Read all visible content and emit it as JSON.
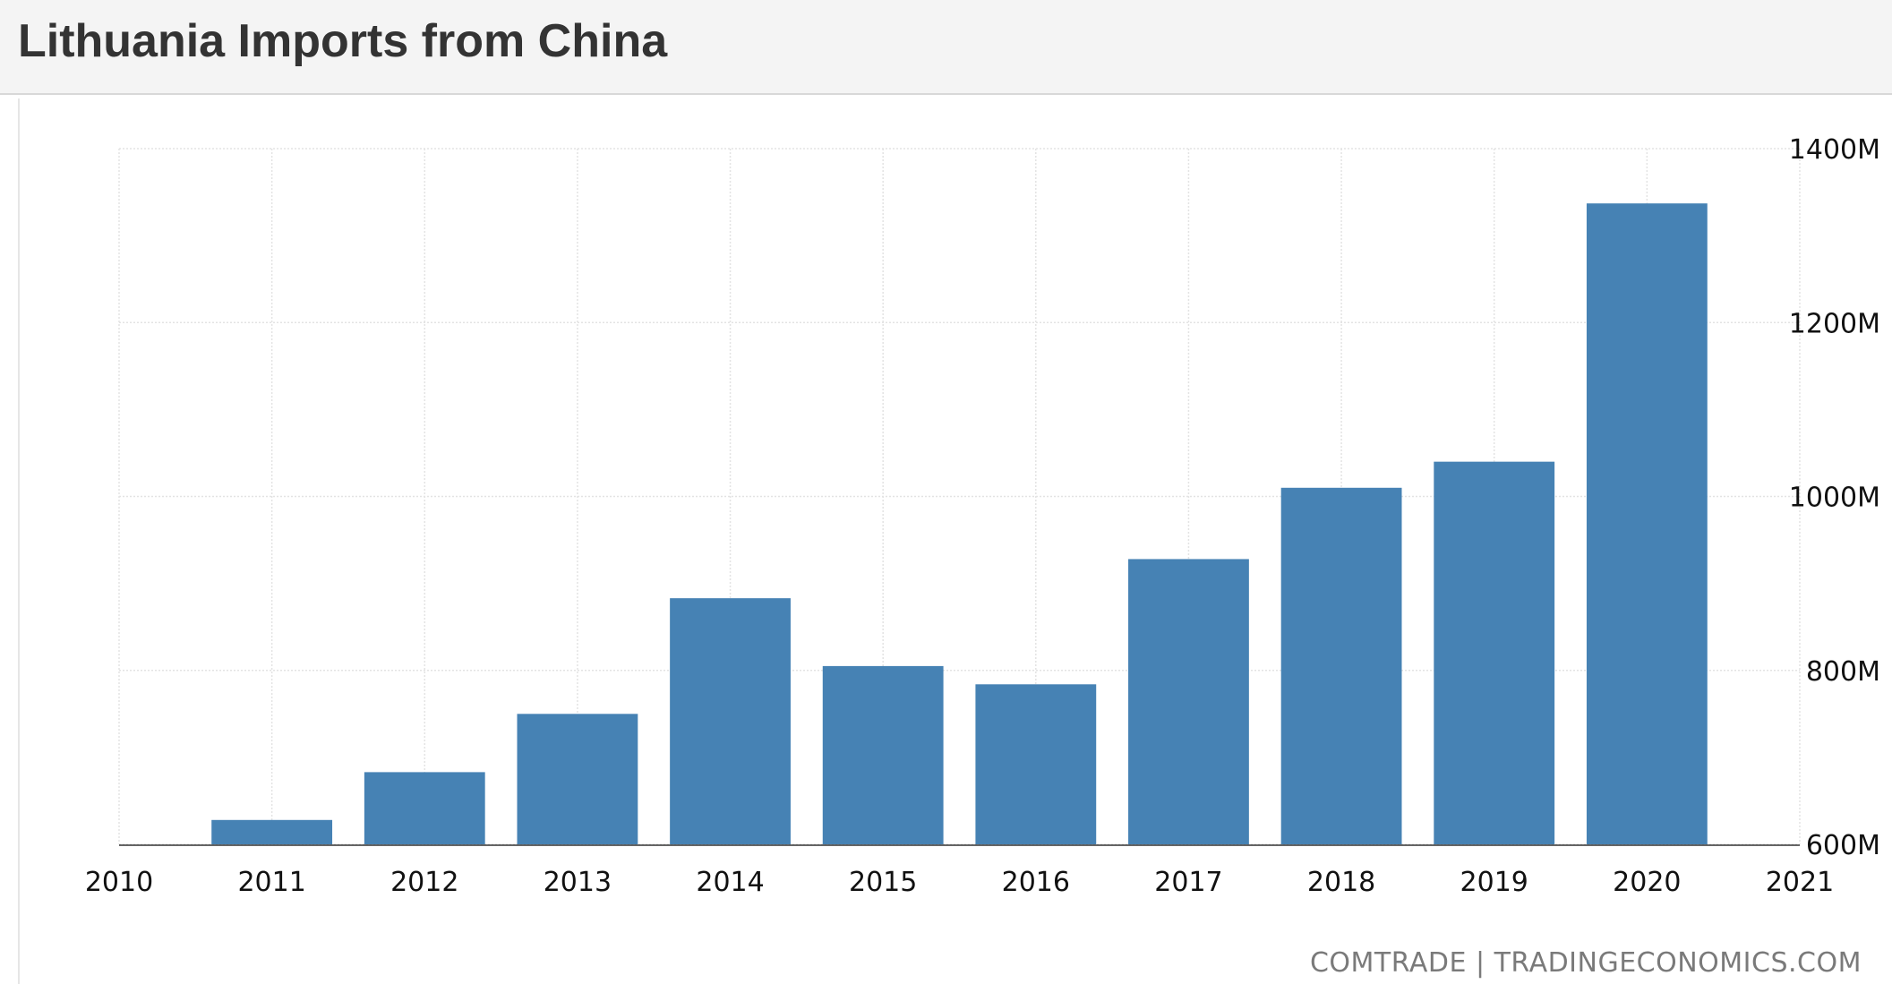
{
  "header": {
    "title": "Lithuania Imports from China"
  },
  "source": "COMTRADE | TRADINGECONOMICS.COM",
  "colors": {
    "bar": "#4682b4",
    "grid": "#e3e3e3",
    "axis_text": "#111111",
    "header_bg": "#f4f4f4",
    "source_text": "#7a7a7a"
  },
  "chart_data": {
    "type": "bar",
    "title": "Lithuania Imports from China",
    "xlabel": "",
    "ylabel": "",
    "categories": [
      "2011",
      "2012",
      "2013",
      "2014",
      "2015",
      "2016",
      "2017",
      "2018",
      "2019",
      "2020"
    ],
    "values": [
      628,
      683,
      750,
      883,
      805,
      784,
      928,
      1010,
      1040,
      1337
    ],
    "unit": "M",
    "x_ticks": [
      "2010",
      "2011",
      "2012",
      "2013",
      "2014",
      "2015",
      "2016",
      "2017",
      "2018",
      "2019",
      "2020",
      "2021"
    ],
    "xlim": [
      2010,
      2021
    ],
    "ylim": [
      600,
      1400
    ],
    "y_ticks": [
      600,
      800,
      1000,
      1200,
      1400
    ],
    "y_tick_labels": [
      "600M",
      "800M",
      "1000M",
      "1200M",
      "1400M"
    ],
    "y_axis_position": "right",
    "grid": true,
    "legend": "none"
  }
}
